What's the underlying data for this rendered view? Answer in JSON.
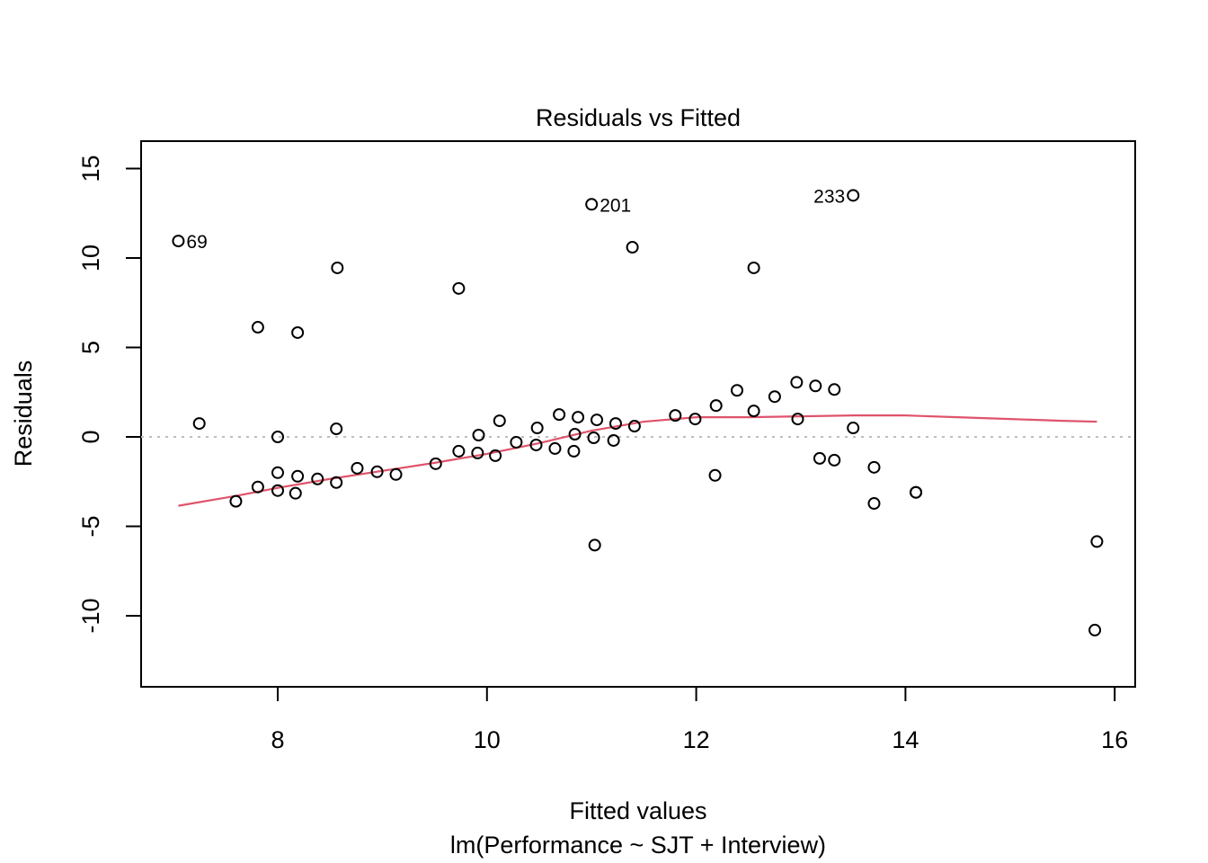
{
  "chart_data": {
    "type": "scatter",
    "title": "Residuals vs Fitted",
    "xlabel": "Fitted values",
    "subtitle": "lm(Performance ~ SJT + Interview)",
    "ylabel": "Residuals",
    "xlim": [
      6.85,
      16.2
    ],
    "ylim": [
      -13.9,
      16.5
    ],
    "x_ticks": [
      8,
      10,
      12,
      14,
      16
    ],
    "y_ticks": [
      -10,
      -5,
      0,
      5,
      10,
      15
    ],
    "grid": false,
    "legend": null,
    "reference_line": {
      "y": 0,
      "style": "dotted",
      "color": "#bebebe"
    },
    "smoother": {
      "name": "loess",
      "color": "#DF536B",
      "x": [
        7.05,
        7.6,
        8.0,
        8.5,
        9.0,
        9.5,
        10.0,
        10.5,
        11.0,
        11.5,
        12.0,
        12.5,
        13.0,
        13.5,
        14.0,
        14.5,
        15.0,
        15.5,
        15.83
      ],
      "y": [
        -3.85,
        -3.3,
        -2.85,
        -2.35,
        -1.9,
        -1.45,
        -0.95,
        -0.35,
        0.35,
        0.85,
        1.1,
        1.1,
        1.15,
        1.2,
        1.2,
        1.1,
        1.0,
        0.9,
        0.85
      ]
    },
    "labeled_points": [
      {
        "label": "69",
        "x": 7.05,
        "y": 10.95
      },
      {
        "label": "201",
        "x": 11.0,
        "y": 13.0
      },
      {
        "label": "233",
        "x": 13.5,
        "y": 13.5
      }
    ],
    "points": {
      "x": [
        7.05,
        7.25,
        7.6,
        7.81,
        7.81,
        8.0,
        8.0,
        8.0,
        8.19,
        8.19,
        8.17,
        8.38,
        8.57,
        8.56,
        8.56,
        8.76,
        8.95,
        9.13,
        9.51,
        9.73,
        9.73,
        9.92,
        9.91,
        10.08,
        10.12,
        10.28,
        10.47,
        10.48,
        10.65,
        10.69,
        10.83,
        10.84,
        10.87,
        11.0,
        11.03,
        11.02,
        11.05,
        11.21,
        11.23,
        11.39,
        11.41,
        11.8,
        11.99,
        12.18,
        12.19,
        12.39,
        12.55,
        12.55,
        12.75,
        12.96,
        12.97,
        13.14,
        13.18,
        13.32,
        13.32,
        13.5,
        13.5,
        13.7,
        13.7,
        14.1,
        14.1,
        15.83,
        15.81
      ],
      "y": [
        10.95,
        0.75,
        -3.6,
        6.13,
        -2.8,
        0.0,
        -2.0,
        -3.0,
        5.83,
        -2.2,
        -3.15,
        -2.35,
        9.45,
        0.45,
        -2.55,
        -1.75,
        -1.95,
        -2.1,
        -1.5,
        8.3,
        -0.8,
        0.1,
        -0.9,
        -1.05,
        0.9,
        -0.3,
        -0.45,
        0.5,
        -0.65,
        1.25,
        -0.8,
        0.15,
        1.1,
        13.0,
        -6.05,
        -0.05,
        0.95,
        -0.2,
        0.75,
        10.6,
        0.6,
        1.2,
        1.0,
        -2.15,
        1.75,
        2.6,
        9.45,
        1.45,
        2.25,
        3.05,
        1.0,
        2.85,
        -1.2,
        2.65,
        -1.3,
        13.5,
        0.5,
        -1.7,
        -3.72,
        -3.1,
        -3.1,
        -5.85,
        -10.8
      ]
    }
  },
  "colors": {
    "points": "#000000",
    "smoother": "#DF536B",
    "zero_line": "#bebebe",
    "axes": "#000000"
  }
}
